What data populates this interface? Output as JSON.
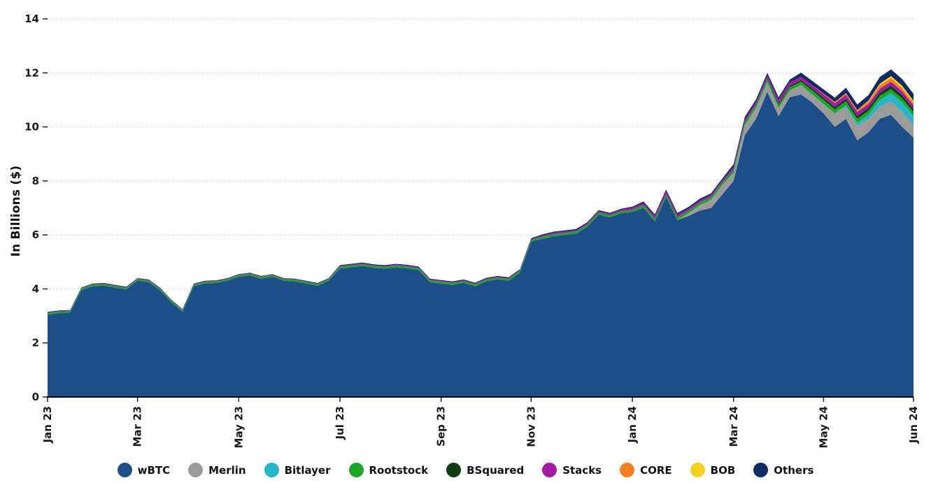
{
  "page": {
    "background": "#ffffff",
    "text_color": "#1a1a1a",
    "grid_color": "#b5b5b5",
    "axis_color": "#000000"
  },
  "chart_data": {
    "type": "area",
    "stacked": true,
    "title": "",
    "xlabel": "",
    "ylabel": "In Billions ($)",
    "ylim": [
      0,
      14
    ],
    "y_ticks": [
      0,
      2,
      4,
      6,
      8,
      10,
      12,
      14
    ],
    "grid": "horizontal-dotted",
    "legend_position": "bottom",
    "x_count": 78,
    "x_ticks": [
      {
        "label": "Jan 23",
        "i": 0
      },
      {
        "label": "Mar 23",
        "i": 8
      },
      {
        "label": "May 23",
        "i": 17
      },
      {
        "label": "Jul 23",
        "i": 26
      },
      {
        "label": "Sep 23",
        "i": 35
      },
      {
        "label": "Nov 23",
        "i": 43
      },
      {
        "label": "Jan 24",
        "i": 52
      },
      {
        "label": "Mar 24",
        "i": 61
      },
      {
        "label": "May 24",
        "i": 69
      },
      {
        "label": "Jun 24",
        "i": 77
      }
    ],
    "series": [
      {
        "name": "wBTC",
        "color": "#1d4e89",
        "values": [
          3.05,
          3.1,
          3.12,
          3.95,
          4.1,
          4.12,
          4.05,
          3.98,
          4.3,
          4.25,
          3.95,
          3.5,
          3.15,
          4.1,
          4.2,
          4.22,
          4.3,
          4.45,
          4.5,
          4.38,
          4.45,
          4.3,
          4.28,
          4.2,
          4.12,
          4.3,
          4.75,
          4.8,
          4.85,
          4.78,
          4.75,
          4.8,
          4.76,
          4.7,
          4.25,
          4.2,
          4.15,
          4.22,
          4.1,
          4.28,
          4.35,
          4.3,
          4.6,
          5.75,
          5.85,
          5.95,
          6.0,
          6.05,
          6.3,
          6.75,
          6.65,
          6.8,
          6.85,
          7.0,
          6.5,
          7.4,
          6.55,
          6.7,
          6.9,
          7.0,
          7.5,
          8.0,
          9.7,
          10.3,
          11.3,
          10.4,
          11.1,
          11.2,
          10.9,
          10.5,
          10.0,
          10.3,
          9.5,
          9.8,
          10.3,
          10.45,
          10.0,
          9.6
        ]
      },
      {
        "name": "Merlin",
        "color": "#9b9b9b",
        "values": [
          0,
          0,
          0,
          0,
          0,
          0,
          0,
          0,
          0,
          0,
          0,
          0,
          0,
          0,
          0,
          0,
          0,
          0,
          0,
          0,
          0,
          0,
          0,
          0,
          0,
          0,
          0,
          0,
          0,
          0,
          0,
          0,
          0,
          0,
          0,
          0,
          0,
          0,
          0,
          0,
          0,
          0,
          0,
          0,
          0,
          0,
          0,
          0,
          0,
          0,
          0,
          0,
          0,
          0,
          0,
          0,
          0,
          0.1,
          0.2,
          0.3,
          0.35,
          0.3,
          0.35,
          0.4,
          0.35,
          0.3,
          0.25,
          0.35,
          0.3,
          0.35,
          0.5,
          0.45,
          0.55,
          0.5,
          0.45,
          0.5,
          0.55,
          0.5
        ]
      },
      {
        "name": "Bitlayer",
        "color": "#27b6c7",
        "values": [
          0,
          0,
          0,
          0,
          0,
          0,
          0,
          0,
          0,
          0,
          0,
          0,
          0,
          0,
          0,
          0,
          0,
          0,
          0,
          0,
          0,
          0,
          0,
          0,
          0,
          0,
          0,
          0,
          0,
          0,
          0,
          0,
          0,
          0,
          0,
          0,
          0,
          0,
          0,
          0,
          0,
          0,
          0,
          0,
          0,
          0,
          0,
          0,
          0,
          0,
          0,
          0,
          0,
          0,
          0,
          0,
          0,
          0,
          0,
          0,
          0,
          0,
          0,
          0,
          0,
          0,
          0,
          0,
          0,
          0,
          0,
          0.05,
          0.1,
          0.15,
          0.25,
          0.3,
          0.35,
          0.3
        ]
      },
      {
        "name": "Rootstock",
        "color": "#1ca626",
        "values": [
          0.06,
          0.06,
          0.06,
          0.06,
          0.06,
          0.06,
          0.06,
          0.06,
          0.06,
          0.06,
          0.06,
          0.06,
          0.06,
          0.06,
          0.06,
          0.06,
          0.06,
          0.06,
          0.06,
          0.06,
          0.06,
          0.06,
          0.06,
          0.06,
          0.06,
          0.06,
          0.07,
          0.07,
          0.07,
          0.07,
          0.07,
          0.07,
          0.07,
          0.07,
          0.07,
          0.07,
          0.07,
          0.07,
          0.07,
          0.07,
          0.07,
          0.07,
          0.07,
          0.07,
          0.08,
          0.08,
          0.08,
          0.08,
          0.08,
          0.08,
          0.08,
          0.08,
          0.08,
          0.1,
          0.1,
          0.1,
          0.1,
          0.1,
          0.1,
          0.1,
          0.1,
          0.12,
          0.12,
          0.12,
          0.12,
          0.12,
          0.12,
          0.12,
          0.15,
          0.15,
          0.15,
          0.15,
          0.15,
          0.15,
          0.15,
          0.15,
          0.15,
          0.15
        ]
      },
      {
        "name": "BSquared",
        "color": "#0e3d10",
        "values": [
          0,
          0,
          0,
          0,
          0,
          0,
          0,
          0,
          0,
          0,
          0,
          0,
          0,
          0,
          0,
          0,
          0,
          0,
          0,
          0,
          0,
          0,
          0,
          0,
          0,
          0,
          0,
          0,
          0,
          0,
          0,
          0,
          0,
          0,
          0,
          0,
          0,
          0,
          0,
          0,
          0,
          0,
          0,
          0,
          0,
          0,
          0,
          0,
          0,
          0,
          0,
          0,
          0,
          0,
          0,
          0,
          0,
          0,
          0,
          0,
          0,
          0,
          0,
          0,
          0.03,
          0.05,
          0.05,
          0.06,
          0.07,
          0.08,
          0.08,
          0.09,
          0.1,
          0.1,
          0.12,
          0.12,
          0.12,
          0.1
        ]
      },
      {
        "name": "Stacks",
        "color": "#a11ba7",
        "values": [
          0.02,
          0.02,
          0.02,
          0.02,
          0.02,
          0.02,
          0.02,
          0.02,
          0.02,
          0.02,
          0.02,
          0.02,
          0.02,
          0.02,
          0.02,
          0.02,
          0.02,
          0.02,
          0.02,
          0.02,
          0.02,
          0.02,
          0.02,
          0.02,
          0.02,
          0.02,
          0.03,
          0.03,
          0.03,
          0.03,
          0.03,
          0.03,
          0.03,
          0.03,
          0.03,
          0.03,
          0.03,
          0.03,
          0.03,
          0.03,
          0.03,
          0.03,
          0.03,
          0.03,
          0.05,
          0.05,
          0.05,
          0.05,
          0.05,
          0.05,
          0.05,
          0.05,
          0.08,
          0.08,
          0.1,
          0.12,
          0.1,
          0.08,
          0.08,
          0.08,
          0.08,
          0.1,
          0.1,
          0.1,
          0.1,
          0.13,
          0.13,
          0.13,
          0.13,
          0.13,
          0.15,
          0.15,
          0.15,
          0.15,
          0.15,
          0.15,
          0.15,
          0.15
        ]
      },
      {
        "name": "CORE",
        "color": "#f57e20",
        "values": [
          0,
          0,
          0,
          0,
          0,
          0,
          0,
          0,
          0,
          0,
          0,
          0,
          0,
          0,
          0,
          0,
          0,
          0,
          0,
          0,
          0,
          0,
          0,
          0,
          0,
          0,
          0,
          0,
          0,
          0,
          0,
          0,
          0,
          0,
          0,
          0,
          0,
          0,
          0,
          0,
          0,
          0,
          0,
          0,
          0,
          0,
          0,
          0,
          0,
          0,
          0,
          0,
          0,
          0,
          0,
          0,
          0,
          0,
          0,
          0,
          0,
          0,
          0,
          0,
          0,
          0,
          0,
          0,
          0,
          0.03,
          0.05,
          0.06,
          0.08,
          0.1,
          0.12,
          0.13,
          0.12,
          0.1
        ]
      },
      {
        "name": "BOB",
        "color": "#f4d01f",
        "values": [
          0,
          0,
          0,
          0,
          0,
          0,
          0,
          0,
          0,
          0,
          0,
          0,
          0,
          0,
          0,
          0,
          0,
          0,
          0,
          0,
          0,
          0,
          0,
          0,
          0,
          0,
          0,
          0,
          0,
          0,
          0,
          0,
          0,
          0,
          0,
          0,
          0,
          0,
          0,
          0,
          0,
          0,
          0,
          0,
          0,
          0,
          0,
          0,
          0,
          0,
          0,
          0,
          0,
          0,
          0,
          0,
          0,
          0,
          0,
          0,
          0,
          0,
          0,
          0,
          0,
          0,
          0,
          0,
          0,
          0,
          0,
          0,
          0,
          0.03,
          0.06,
          0.08,
          0.08,
          0.07
        ]
      },
      {
        "name": "Others",
        "color": "#0e2b66",
        "values": [
          0.02,
          0.02,
          0.02,
          0.02,
          0.02,
          0.02,
          0.02,
          0.02,
          0.02,
          0.02,
          0.02,
          0.02,
          0.02,
          0.02,
          0.02,
          0.02,
          0.02,
          0.02,
          0.02,
          0.02,
          0.02,
          0.02,
          0.02,
          0.02,
          0.02,
          0.02,
          0.03,
          0.03,
          0.03,
          0.03,
          0.03,
          0.03,
          0.03,
          0.03,
          0.03,
          0.03,
          0.03,
          0.03,
          0.03,
          0.03,
          0.03,
          0.03,
          0.03,
          0.03,
          0.04,
          0.04,
          0.04,
          0.04,
          0.04,
          0.04,
          0.04,
          0.04,
          0.04,
          0.06,
          0.06,
          0.06,
          0.06,
          0.06,
          0.06,
          0.06,
          0.06,
          0.1,
          0.1,
          0.1,
          0.1,
          0.1,
          0.1,
          0.15,
          0.15,
          0.15,
          0.15,
          0.2,
          0.2,
          0.2,
          0.25,
          0.25,
          0.25,
          0.25
        ]
      }
    ]
  }
}
